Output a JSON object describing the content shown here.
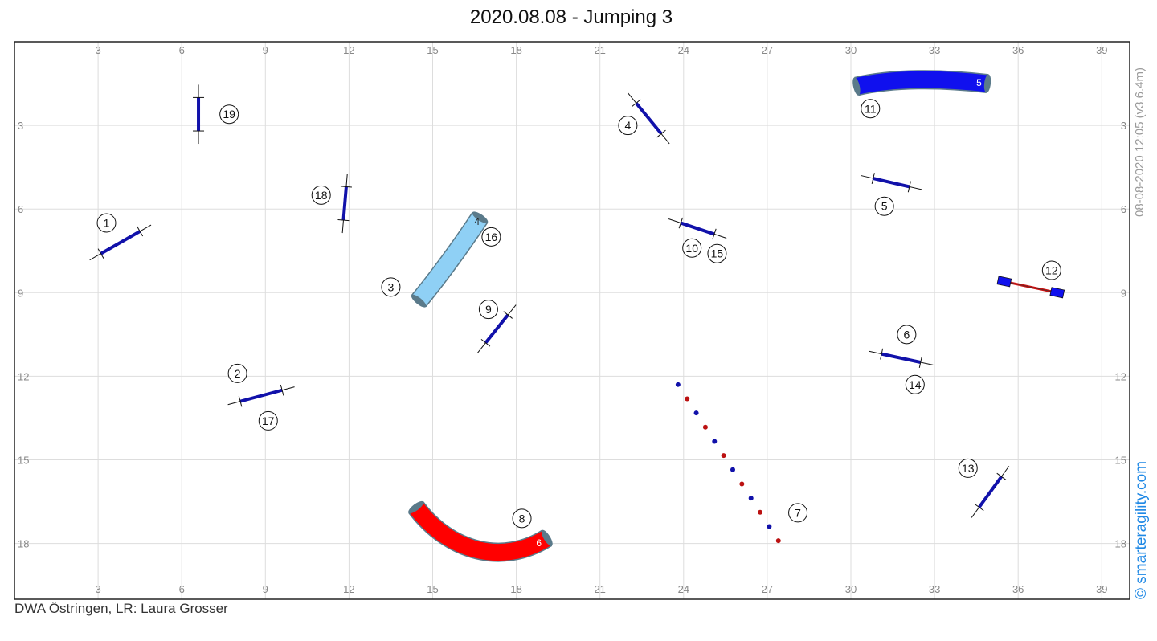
{
  "title": "2020.08.08 - Jumping 3",
  "footer": "DWA Östringen,  LR: Laura Grosser",
  "brand": "© smarteragility.com",
  "stamp": "08-08-2020 12:05  (v3.6.4m)",
  "colors": {
    "jump_bar": "#1111aa",
    "tunnel_blue": "#1010ee",
    "tunnel_light": "#8fd0f5",
    "tunnel_red": "#ff0000",
    "tunnel_end": "#5a7a8a",
    "weave_blue": "#1111aa",
    "weave_red": "#bb1111",
    "grid": "#dddddd"
  },
  "grid": {
    "x_range": [
      0,
      40
    ],
    "y_range": [
      0,
      20
    ],
    "x_ticks": [
      3,
      6,
      9,
      12,
      15,
      18,
      21,
      24,
      27,
      30,
      33,
      36,
      39
    ],
    "y_ticks": [
      3,
      6,
      9,
      12,
      15,
      18
    ],
    "x_tick_labels": [
      "3",
      "6",
      "9",
      "12",
      "15",
      "18",
      "21",
      "24",
      "27",
      "30",
      "33",
      "36",
      "39"
    ],
    "y_tick_labels": [
      "3",
      "6",
      "9",
      "12",
      "15",
      "18"
    ]
  },
  "jumps": [
    {
      "name": "jump-1",
      "x1": 3.1,
      "y1": 7.6,
      "x2": 4.5,
      "y2": 6.8
    },
    {
      "name": "jump-2",
      "x1": 8.1,
      "y1": 12.9,
      "x2": 9.6,
      "y2": 12.5
    },
    {
      "name": "jump-4",
      "x1": 22.3,
      "y1": 2.2,
      "x2": 23.2,
      "y2": 3.3
    },
    {
      "name": "jump-5",
      "x1": 30.8,
      "y1": 4.9,
      "x2": 32.1,
      "y2": 5.2
    },
    {
      "name": "jump-6",
      "x1": 31.1,
      "y1": 11.2,
      "x2": 32.5,
      "y2": 11.5
    },
    {
      "name": "jump-9",
      "x1": 16.9,
      "y1": 10.8,
      "x2": 17.7,
      "y2": 9.8
    },
    {
      "name": "jump-10",
      "x1": 23.9,
      "y1": 6.5,
      "x2": 25.1,
      "y2": 6.9
    },
    {
      "name": "jump-13",
      "x1": 34.6,
      "y1": 16.7,
      "x2": 35.4,
      "y2": 15.6
    },
    {
      "name": "jump-18",
      "x1": 11.8,
      "y1": 6.4,
      "x2": 11.9,
      "y2": 5.2
    },
    {
      "name": "jump-19",
      "x1": 6.6,
      "y1": 3.2,
      "x2": 6.6,
      "y2": 2.0
    }
  ],
  "tunnels": [
    {
      "name": "tunnel-5",
      "label": "5",
      "kind": "blue",
      "points": [
        [
          30.2,
          1.6
        ],
        [
          31.5,
          1.3
        ],
        [
          33.2,
          1.3
        ],
        [
          34.9,
          1.5
        ]
      ]
    },
    {
      "name": "tunnel-4",
      "label": "4",
      "kind": "light",
      "points": [
        [
          14.5,
          9.3
        ],
        [
          15.4,
          8.2
        ],
        [
          16.1,
          7.2
        ],
        [
          16.7,
          6.3
        ]
      ]
    },
    {
      "name": "tunnel-6",
      "label": "6",
      "kind": "red",
      "points": [
        [
          14.4,
          16.7
        ],
        [
          15.6,
          18.3
        ],
        [
          17.5,
          18.8
        ],
        [
          19.1,
          17.8
        ]
      ]
    }
  ],
  "wall": {
    "x1": 35.5,
    "y1": 8.6,
    "x2": 37.4,
    "y2": 9.0
  },
  "weave": {
    "x1": 23.8,
    "y1": 12.3,
    "x2": 27.4,
    "y2": 17.9,
    "count": 12
  },
  "labels": [
    {
      "text": "1",
      "x": 3.3,
      "y": 6.5
    },
    {
      "text": "2",
      "x": 8.0,
      "y": 11.9
    },
    {
      "text": "3",
      "x": 13.5,
      "y": 8.8
    },
    {
      "text": "4",
      "x": 22.0,
      "y": 3.0
    },
    {
      "text": "5",
      "x": 31.2,
      "y": 5.9
    },
    {
      "text": "6",
      "x": 32.0,
      "y": 10.5
    },
    {
      "text": "7",
      "x": 28.1,
      "y": 16.9
    },
    {
      "text": "8",
      "x": 18.2,
      "y": 17.1
    },
    {
      "text": "9",
      "x": 17.0,
      "y": 9.6
    },
    {
      "text": "10",
      "x": 24.3,
      "y": 7.4
    },
    {
      "text": "11",
      "x": 30.7,
      "y": 2.4
    },
    {
      "text": "12",
      "x": 37.2,
      "y": 8.2
    },
    {
      "text": "13",
      "x": 34.2,
      "y": 15.3
    },
    {
      "text": "14",
      "x": 32.3,
      "y": 12.3
    },
    {
      "text": "15",
      "x": 25.2,
      "y": 7.6
    },
    {
      "text": "16",
      "x": 17.1,
      "y": 7.0
    },
    {
      "text": "17",
      "x": 9.1,
      "y": 13.6
    },
    {
      "text": "18",
      "x": 11.0,
      "y": 5.5
    },
    {
      "text": "19",
      "x": 7.7,
      "y": 2.6
    }
  ]
}
